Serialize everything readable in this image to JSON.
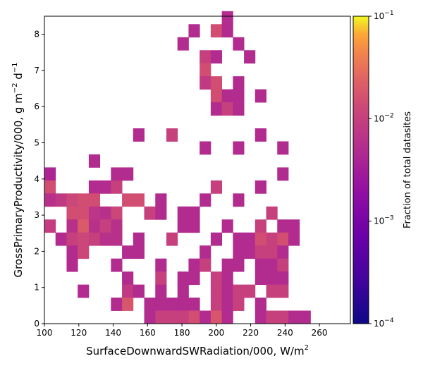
{
  "chart_data": {
    "type": "heatmap",
    "title": "",
    "xlabel": "SurfaceDownwardSWRadiation/000,  W/m",
    "xlabel_sup": "2",
    "ylabel_parts": [
      "GrossPrimaryProductivity/000,  g m",
      "−2",
      " d",
      "−1"
    ],
    "xlim": [
      100,
      278
    ],
    "ylim": [
      0,
      8.5
    ],
    "x_ticks": [
      100,
      120,
      140,
      160,
      180,
      200,
      220,
      240,
      260
    ],
    "y_ticks": [
      0,
      1,
      2,
      3,
      4,
      5,
      6,
      7,
      8
    ],
    "bin_width_x": 6.45,
    "bin_height_y": 0.36,
    "colorbar": {
      "label": "Fraction of total datasites",
      "scale": "log",
      "colormap": "plasma",
      "range": [
        0.0001,
        0.1
      ],
      "tick_labels": [
        "10",
        "10",
        "10",
        "10"
      ],
      "tick_exponents": [
        "−1",
        "−2",
        "−3",
        "−4"
      ],
      "tick_values": [
        0.1,
        0.01,
        0.001,
        0.0001
      ]
    },
    "cells": [
      [
        100,
        3.96,
        0.004
      ],
      [
        100,
        3.6,
        0.015
      ],
      [
        100,
        3.24,
        0.006
      ],
      [
        100,
        2.52,
        0.009
      ],
      [
        106.45,
        3.24,
        0.008
      ],
      [
        106.45,
        2.16,
        0.005
      ],
      [
        112.9,
        3.24,
        0.012
      ],
      [
        112.9,
        2.88,
        0.015
      ],
      [
        112.9,
        2.52,
        0.006
      ],
      [
        112.9,
        2.16,
        0.01
      ],
      [
        112.9,
        1.8,
        0.005
      ],
      [
        112.9,
        1.44,
        0.005
      ],
      [
        119.35,
        3.24,
        0.015
      ],
      [
        119.35,
        2.88,
        0.015
      ],
      [
        119.35,
        2.52,
        0.02
      ],
      [
        119.35,
        2.16,
        0.012
      ],
      [
        119.35,
        1.8,
        0.012
      ],
      [
        119.35,
        0.72,
        0.005
      ],
      [
        125.8,
        4.32,
        0.005
      ],
      [
        125.8,
        3.6,
        0.005
      ],
      [
        125.8,
        3.24,
        0.015
      ],
      [
        125.8,
        2.88,
        0.007
      ],
      [
        125.8,
        2.52,
        0.006
      ],
      [
        125.8,
        2.16,
        0.01
      ],
      [
        132.25,
        3.6,
        0.005
      ],
      [
        132.25,
        2.88,
        0.006
      ],
      [
        132.25,
        2.52,
        0.01
      ],
      [
        132.25,
        2.16,
        0.006
      ],
      [
        138.7,
        3.96,
        0.005
      ],
      [
        138.7,
        3.6,
        0.01
      ],
      [
        138.7,
        2.88,
        0.012
      ],
      [
        138.7,
        2.52,
        0.006
      ],
      [
        138.7,
        2.16,
        0.006
      ],
      [
        138.7,
        1.44,
        0.005
      ],
      [
        138.7,
        0.36,
        0.005
      ],
      [
        145.15,
        3.96,
        0.005
      ],
      [
        145.15,
        3.24,
        0.015
      ],
      [
        145.15,
        1.8,
        0.005
      ],
      [
        145.15,
        1.08,
        0.005
      ],
      [
        145.15,
        0.72,
        0.008
      ],
      [
        145.15,
        0.36,
        0.018
      ],
      [
        151.6,
        5.04,
        0.005
      ],
      [
        151.6,
        3.24,
        0.015
      ],
      [
        151.6,
        2.16,
        0.005
      ],
      [
        151.6,
        1.8,
        0.005
      ],
      [
        151.6,
        0.72,
        0.005
      ],
      [
        158.05,
        2.88,
        0.01
      ],
      [
        158.05,
        0.36,
        0.005
      ],
      [
        158.05,
        0.0,
        0.005
      ],
      [
        164.5,
        3.24,
        0.005
      ],
      [
        164.5,
        2.88,
        0.005
      ],
      [
        164.5,
        1.44,
        0.005
      ],
      [
        164.5,
        1.08,
        0.01
      ],
      [
        164.5,
        0.72,
        0.005
      ],
      [
        164.5,
        0.36,
        0.005
      ],
      [
        164.5,
        0.0,
        0.01
      ],
      [
        170.95,
        5.04,
        0.01
      ],
      [
        170.95,
        2.16,
        0.01
      ],
      [
        170.95,
        0.36,
        0.005
      ],
      [
        170.95,
        0.0,
        0.01
      ],
      [
        177.4,
        7.56,
        0.005
      ],
      [
        177.4,
        2.88,
        0.005
      ],
      [
        177.4,
        2.52,
        0.005
      ],
      [
        177.4,
        1.08,
        0.005
      ],
      [
        177.4,
        0.72,
        0.005
      ],
      [
        177.4,
        0.36,
        0.005
      ],
      [
        177.4,
        0.0,
        0.01
      ],
      [
        183.85,
        7.92,
        0.005
      ],
      [
        183.85,
        2.88,
        0.005
      ],
      [
        183.85,
        2.52,
        0.005
      ],
      [
        183.85,
        1.44,
        0.005
      ],
      [
        183.85,
        1.08,
        0.005
      ],
      [
        183.85,
        0.36,
        0.005
      ],
      [
        183.85,
        0.0,
        0.015
      ],
      [
        190.3,
        7.2,
        0.01
      ],
      [
        190.3,
        6.84,
        0.015
      ],
      [
        190.3,
        6.48,
        0.008
      ],
      [
        190.3,
        4.68,
        0.005
      ],
      [
        190.3,
        3.24,
        0.005
      ],
      [
        190.3,
        1.8,
        0.005
      ],
      [
        190.3,
        1.44,
        0.01
      ],
      [
        190.3,
        0.0,
        0.005
      ],
      [
        196.75,
        7.92,
        0.015
      ],
      [
        196.75,
        7.2,
        0.005
      ],
      [
        196.75,
        6.48,
        0.015
      ],
      [
        196.75,
        6.12,
        0.015
      ],
      [
        196.75,
        5.76,
        0.005
      ],
      [
        196.75,
        3.6,
        0.01
      ],
      [
        196.75,
        2.16,
        0.005
      ],
      [
        196.75,
        1.08,
        0.01
      ],
      [
        196.75,
        0.72,
        0.01
      ],
      [
        196.75,
        0.36,
        0.01
      ],
      [
        196.75,
        0.0,
        0.018
      ],
      [
        203.2,
        8.28,
        0.005
      ],
      [
        203.2,
        7.92,
        0.005
      ],
      [
        203.2,
        6.12,
        0.005
      ],
      [
        203.2,
        5.76,
        0.01
      ],
      [
        203.2,
        2.52,
        0.005
      ],
      [
        203.2,
        1.44,
        0.005
      ],
      [
        203.2,
        1.08,
        0.005
      ],
      [
        203.2,
        0.72,
        0.005
      ],
      [
        203.2,
        0.36,
        0.005
      ],
      [
        203.2,
        0.0,
        0.005
      ],
      [
        209.65,
        7.56,
        0.005
      ],
      [
        209.65,
        6.48,
        0.005
      ],
      [
        209.65,
        6.12,
        0.005
      ],
      [
        209.65,
        5.76,
        0.005
      ],
      [
        209.65,
        4.68,
        0.005
      ],
      [
        209.65,
        3.24,
        0.005
      ],
      [
        209.65,
        2.16,
        0.005
      ],
      [
        209.65,
        1.8,
        0.005
      ],
      [
        209.65,
        1.44,
        0.005
      ],
      [
        209.65,
        0.72,
        0.01
      ],
      [
        209.65,
        0.36,
        0.01
      ],
      [
        216.1,
        7.2,
        0.005
      ],
      [
        216.1,
        2.16,
        0.005
      ],
      [
        216.1,
        1.8,
        0.005
      ],
      [
        216.1,
        0.72,
        0.01
      ],
      [
        222.55,
        6.12,
        0.005
      ],
      [
        222.55,
        5.04,
        0.005
      ],
      [
        222.55,
        3.6,
        0.005
      ],
      [
        222.55,
        2.52,
        0.01
      ],
      [
        222.55,
        2.16,
        0.015
      ],
      [
        222.55,
        1.8,
        0.01
      ],
      [
        222.55,
        1.44,
        0.005
      ],
      [
        222.55,
        1.08,
        0.005
      ],
      [
        222.55,
        0.36,
        0.005
      ],
      [
        222.55,
        0.0,
        0.005
      ],
      [
        229,
        2.88,
        0.01
      ],
      [
        229,
        2.16,
        0.01
      ],
      [
        229,
        1.8,
        0.01
      ],
      [
        229,
        1.44,
        0.005
      ],
      [
        229,
        1.08,
        0.005
      ],
      [
        229,
        0.72,
        0.01
      ],
      [
        229,
        0.0,
        0.01
      ],
      [
        235.45,
        4.68,
        0.005
      ],
      [
        235.45,
        3.96,
        0.005
      ],
      [
        235.45,
        2.52,
        0.005
      ],
      [
        235.45,
        2.16,
        0.015
      ],
      [
        235.45,
        1.8,
        0.005
      ],
      [
        235.45,
        1.44,
        0.01
      ],
      [
        235.45,
        1.08,
        0.005
      ],
      [
        235.45,
        0.72,
        0.01
      ],
      [
        235.45,
        0.0,
        0.01
      ],
      [
        241.9,
        2.52,
        0.005
      ],
      [
        241.9,
        2.16,
        0.005
      ],
      [
        241.9,
        0.0,
        0.005
      ],
      [
        248.35,
        0.0,
        0.005
      ]
    ]
  }
}
